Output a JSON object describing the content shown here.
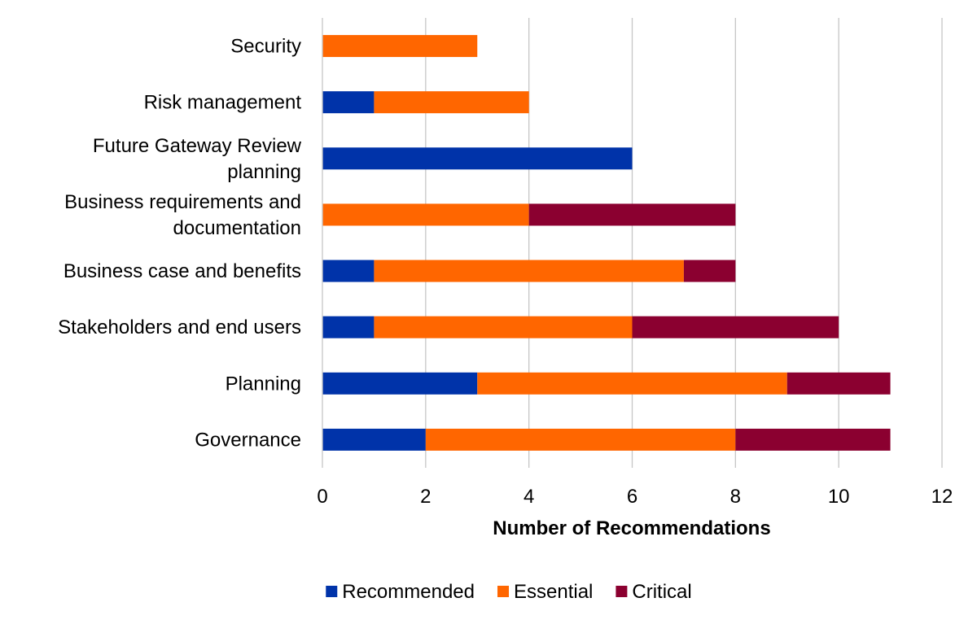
{
  "chart_data": {
    "type": "bar",
    "orientation": "horizontal",
    "stacked": true,
    "title": "",
    "xlabel": "Number of Recommendations",
    "ylabel": "",
    "xlim": [
      0,
      12
    ],
    "xticks": [
      0,
      2,
      4,
      6,
      8,
      10,
      12
    ],
    "grid": true,
    "legend_position": "bottom",
    "categories": [
      [
        "Security"
      ],
      [
        "Risk management"
      ],
      [
        "Future Gateway Review",
        "planning"
      ],
      [
        "Business requirements and",
        "documentation"
      ],
      [
        "Business case and benefits"
      ],
      [
        "Stakeholders and end users"
      ],
      [
        "Planning"
      ],
      [
        "Governance"
      ]
    ],
    "series": [
      {
        "name": "Recommended",
        "color": "#0033A9",
        "values": [
          0,
          1,
          6,
          0,
          1,
          1,
          3,
          2
        ]
      },
      {
        "name": "Essential",
        "color": "#FF6600",
        "values": [
          3,
          3,
          0,
          4,
          6,
          5,
          6,
          6
        ]
      },
      {
        "name": "Critical",
        "color": "#8B0030",
        "values": [
          0,
          0,
          0,
          4,
          1,
          4,
          2,
          3
        ]
      }
    ]
  }
}
